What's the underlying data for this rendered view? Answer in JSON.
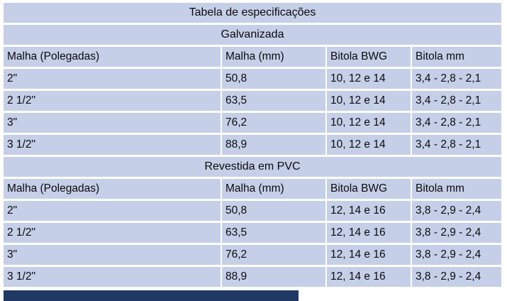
{
  "table": {
    "title": "Tabela de especificações",
    "sections": [
      {
        "name": "Galvanizada",
        "headers": [
          "Malha (Polegadas)",
          "Malha (mm)",
          "Bitola BWG",
          "Bitola mm"
        ],
        "rows": [
          [
            "2\"",
            "50,8",
            "10, 12 e 14",
            "3,4 - 2,8 - 2,1"
          ],
          [
            "2 1/2\"",
            "63,5",
            "10, 12 e 14",
            "3,4 - 2,8 - 2,1"
          ],
          [
            "3\"",
            "76,2",
            "10, 12 e 14",
            "3,4 - 2,8 - 2,1"
          ],
          [
            "3 1/2\"",
            "88,9",
            "10, 12 e 14",
            "3,4 - 2,8 - 2,1"
          ]
        ]
      },
      {
        "name": "Revestida em PVC",
        "headers": [
          "Malha (Polegadas)",
          "Malha (mm)",
          "Bitola BWG",
          "Bitola mm"
        ],
        "rows": [
          [
            "2\"",
            "50,8",
            "12, 14 e 16",
            "3,8 - 2,9 - 2,4"
          ],
          [
            "2 1/2\"",
            "63,5",
            "12, 14 e 16",
            "3,8 - 2,9 - 2,4"
          ],
          [
            "3\"",
            "76,2",
            "12, 14 e 16",
            "3,8 - 2,9 - 2,4"
          ],
          [
            "3 1/2\"",
            "88,9",
            "12, 14 e 16",
            "3,8 - 2,9 - 2,4"
          ]
        ]
      }
    ],
    "colors": {
      "row_fill": "#c5cfe8",
      "footer_bar": "#1f3864",
      "text": "#0b0b0b"
    }
  }
}
